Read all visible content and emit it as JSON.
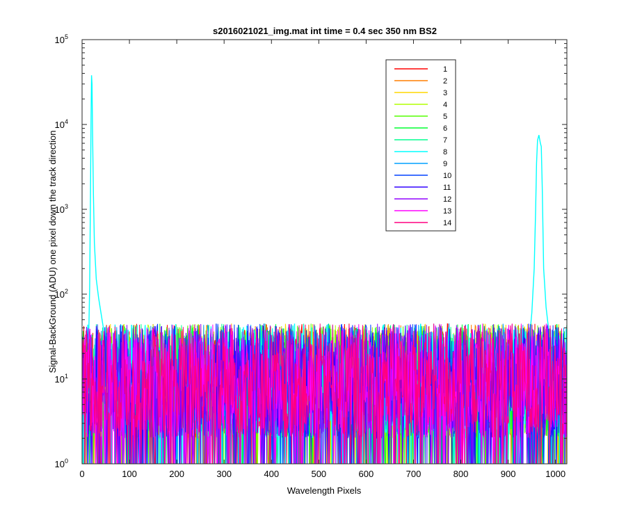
{
  "chart_data": {
    "type": "line",
    "title": "s2016021021_img.mat int time = 0.4 sec  350 nm BS2",
    "xlabel": "Wavelength Pixels",
    "ylabel": "Signal-BackGround (ADU) one pixel down the track direction",
    "xlim": [
      0,
      1024
    ],
    "ylim": [
      1,
      100000
    ],
    "yscale": "log",
    "xticks": [
      0,
      100,
      200,
      300,
      400,
      500,
      600,
      700,
      800,
      900,
      1000
    ],
    "yticks": [
      {
        "value": 1,
        "base": "10",
        "exp": "0"
      },
      {
        "value": 10,
        "base": "10",
        "exp": "1"
      },
      {
        "value": 100,
        "base": "10",
        "exp": "2"
      },
      {
        "value": 1000,
        "base": "10",
        "exp": "3"
      },
      {
        "value": 10000,
        "base": "10",
        "exp": "4"
      },
      {
        "value": 100000,
        "base": "10",
        "exp": "5"
      }
    ],
    "grid": false,
    "legend_position": "top-right",
    "noise": {
      "floor": 1,
      "typical_range": [
        2,
        45
      ]
    },
    "series": [
      {
        "name": "1",
        "color": "#ff0000"
      },
      {
        "name": "2",
        "color": "#ff7f00"
      },
      {
        "name": "3",
        "color": "#ffd700"
      },
      {
        "name": "4",
        "color": "#b0ff00"
      },
      {
        "name": "5",
        "color": "#55ff00"
      },
      {
        "name": "6",
        "color": "#00ff30"
      },
      {
        "name": "7",
        "color": "#00ff90"
      },
      {
        "name": "8",
        "color": "#00ffff",
        "peaks": [
          {
            "x": [
              14,
              16,
              18,
              19,
              20,
              21,
              22,
              24,
              26,
              30,
              35,
              40,
              45
            ],
            "y": [
              30,
              120,
              2500,
              12000,
              38000,
              30000,
              9000,
              1500,
              400,
              150,
              90,
              60,
              40
            ]
          },
          {
            "x": [
              945,
              950,
              955,
              958,
              960,
              962,
              965,
              968,
              970,
              972,
              975,
              980,
              985
            ],
            "y": [
              30,
              60,
              200,
              1000,
              3500,
              6500,
              7500,
              6000,
              5500,
              1800,
              200,
              70,
              40
            ]
          }
        ]
      },
      {
        "name": "9",
        "color": "#00a0ff"
      },
      {
        "name": "10",
        "color": "#0040ff"
      },
      {
        "name": "11",
        "color": "#3000ff"
      },
      {
        "name": "12",
        "color": "#9000ff"
      },
      {
        "name": "13",
        "color": "#ff00ff"
      },
      {
        "name": "14",
        "color": "#ff0080"
      }
    ]
  }
}
